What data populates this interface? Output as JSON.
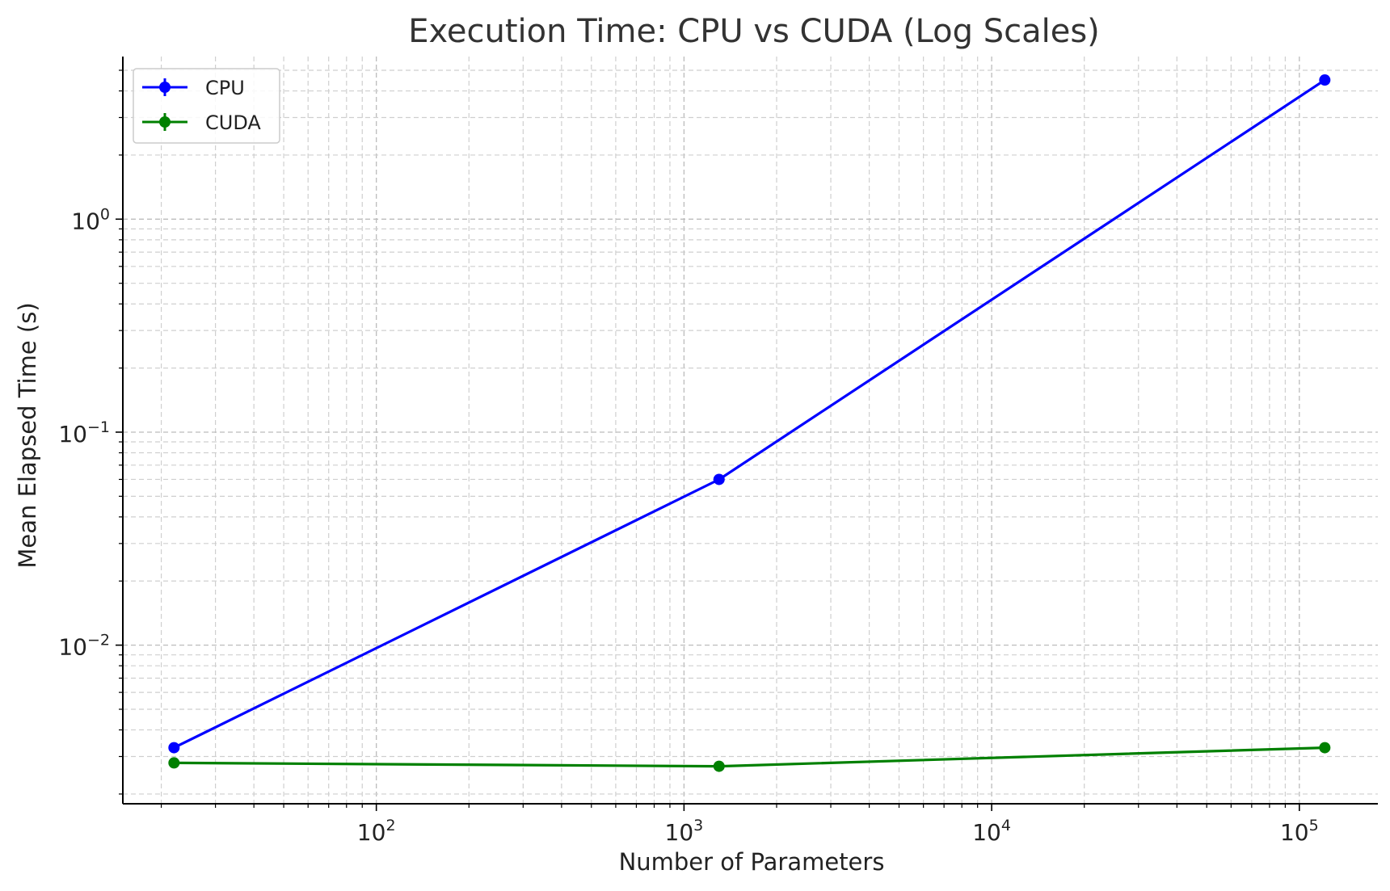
{
  "chart_data": {
    "type": "line",
    "title": "Execution Time: CPU vs CUDA (Log Scales)",
    "xlabel": "Number of Parameters",
    "ylabel": "Mean Elapsed Time (s)",
    "xscale": "log",
    "yscale": "log",
    "xlim": [
      15,
      180000
    ],
    "ylim": [
      0.0018,
      5.8
    ],
    "x_ticks": [
      {
        "value": 100,
        "base": "10",
        "exp": "2"
      },
      {
        "value": 1000,
        "base": "10",
        "exp": "3"
      },
      {
        "value": 10000,
        "base": "10",
        "exp": "4"
      },
      {
        "value": 100000,
        "base": "10",
        "exp": "5"
      }
    ],
    "y_ticks": [
      {
        "value": 0.01,
        "base": "10",
        "exp": "−2"
      },
      {
        "value": 0.1,
        "base": "10",
        "exp": "−1"
      },
      {
        "value": 1,
        "base": "10",
        "exp": "0"
      }
    ],
    "grid": "both-dashed",
    "legend": "top-left",
    "series": [
      {
        "name": "CPU",
        "color": "#0000ff",
        "x": [
          22,
          1300,
          121000
        ],
        "y": [
          0.0033,
          0.06,
          4.5
        ]
      },
      {
        "name": "CUDA",
        "color": "#008000",
        "x": [
          22,
          1300,
          121000
        ],
        "y": [
          0.0028,
          0.0027,
          0.0033
        ]
      }
    ]
  }
}
